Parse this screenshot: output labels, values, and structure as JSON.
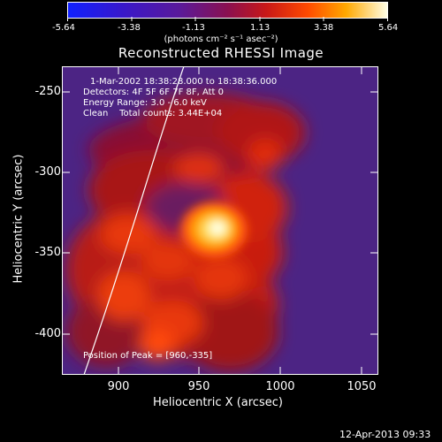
{
  "colorbar": {
    "ticks": [
      "-5.64",
      "-3.38",
      "-1.13",
      "1.13",
      "3.38",
      "5.64"
    ],
    "units": "(photons cm⁻² s⁻¹ asec⁻²)"
  },
  "title": "Reconstructed RHESSI Image",
  "info": {
    "time_range": "1-Mar-2002 18:38:28.000 to 18:38:36.000",
    "detectors": "Detectors: 4F 5F 6F 7F 8F, Att 0",
    "energy": "Energy Range: 3.0 - 6.0 keV",
    "clean": "Clean    Total counts: 3.44E+04",
    "peak": "Position of Peak = [960,-335]"
  },
  "axes": {
    "xlabel": "Heliocentric X (arcsec)",
    "ylabel": "Heliocentric Y (arcsec)",
    "xticks": [
      "900",
      "950",
      "1000",
      "1050"
    ],
    "yticks": [
      "-250",
      "-300",
      "-350",
      "-400"
    ]
  },
  "footer": "12-Apr-2013 09:33",
  "colors": {
    "background": "#000000",
    "image_bg": "#5a2a8c"
  }
}
